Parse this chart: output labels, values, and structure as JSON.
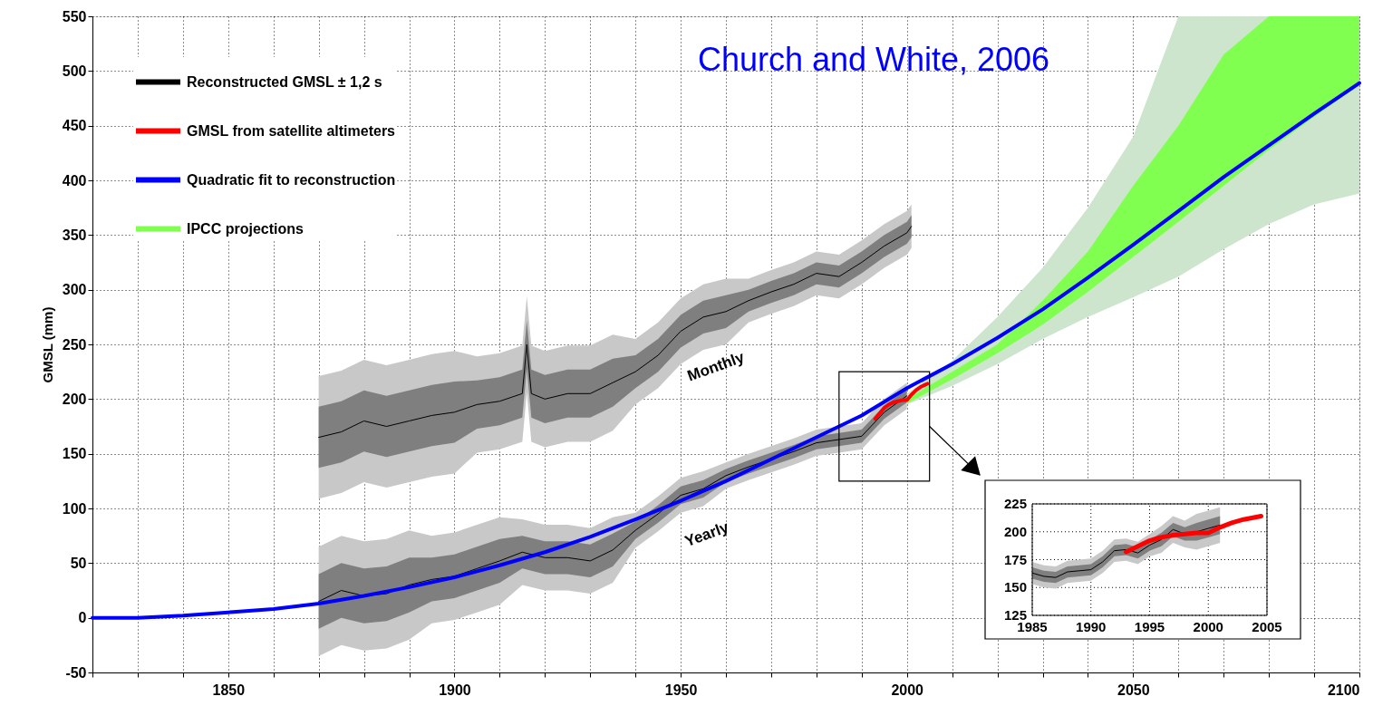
{
  "chart_data": [
    {
      "type": "line",
      "title": "Church and White, 2006",
      "ylabel": "GMSL (mm)",
      "xlim": [
        1820,
        2100
      ],
      "ylim": [
        -50,
        550
      ],
      "xticks": [
        {
          "value": 1820,
          "label": null
        },
        {
          "value": 1830,
          "label": null
        },
        {
          "value": 1840,
          "label": null
        },
        1850,
        {
          "value": 1860,
          "label": null
        },
        {
          "value": 1870,
          "label": null
        },
        {
          "value": 1880,
          "label": null
        },
        {
          "value": 1890,
          "label": null
        },
        1900,
        {
          "value": 1910,
          "label": null
        },
        {
          "value": 1920,
          "label": null
        },
        {
          "value": 1930,
          "label": null
        },
        {
          "value": 1940,
          "label": null
        },
        1950,
        {
          "value": 1960,
          "label": null
        },
        {
          "value": 1970,
          "label": null
        },
        {
          "value": 1980,
          "label": null
        },
        {
          "value": 1990,
          "label": null
        },
        2000,
        {
          "value": 2010,
          "label": null
        },
        {
          "value": 2020,
          "label": null
        },
        {
          "value": 2030,
          "label": null
        },
        {
          "value": 2040,
          "label": null
        },
        2050,
        {
          "value": 2060,
          "label": null
        },
        {
          "value": 2070,
          "label": null
        },
        {
          "value": 2080,
          "label": null
        },
        {
          "value": 2090,
          "label": null
        },
        2100
      ],
      "yticks": [
        -50,
        0,
        50,
        100,
        150,
        200,
        250,
        300,
        350,
        400,
        450,
        500,
        550
      ],
      "grid": true,
      "legend": "top left",
      "annotations": [
        "Monthly",
        "Yearly"
      ],
      "series": [
        {
          "type": "line",
          "color": "#c8c8c8",
          "x": [
            1870,
            1875,
            1880,
            1885,
            1890,
            1895,
            1900,
            1905,
            1910,
            1915,
            1920,
            1925,
            1930,
            1935,
            1940,
            1945,
            1950,
            1955,
            1960,
            1965,
            1970,
            1975,
            1980,
            1985,
            1990,
            1995,
            2000
          ],
          "values": [
            null,
            null,
            null,
            null,
            null,
            null,
            null,
            null,
            null,
            null,
            null,
            null,
            null,
            null,
            null,
            null,
            null,
            null,
            null,
            null,
            null,
            null,
            null,
            null,
            null,
            null,
            null
          ],
          "lower": [
            -35,
            -25,
            -30,
            -28,
            -20,
            -5,
            -2,
            5,
            12,
            30,
            25,
            25,
            22,
            32,
            64,
            79,
            96,
            102,
            118,
            126,
            133,
            140,
            148,
            151,
            154,
            176,
            191
          ],
          "upper": [
            65,
            75,
            70,
            72,
            80,
            75,
            78,
            85,
            92,
            90,
            85,
            85,
            82,
            92,
            96,
            111,
            128,
            134,
            142,
            150,
            157,
            164,
            172,
            175,
            178,
            200,
            215
          ]
        },
        {
          "type": "line",
          "color": "#7f7f7f",
          "x": [
            1870,
            1875,
            1880,
            1885,
            1890,
            1895,
            1900,
            1905,
            1910,
            1915,
            1920,
            1925,
            1930,
            1935,
            1940,
            1945,
            1950,
            1955,
            1960,
            1965,
            1970,
            1975,
            1980,
            1985,
            1990,
            1995,
            2000
          ],
          "values": [
            null,
            null,
            null,
            null,
            null,
            null,
            null,
            null,
            null,
            null,
            null,
            null,
            null,
            null,
            null,
            null,
            null,
            null,
            null,
            null,
            null,
            null,
            null,
            null,
            null,
            null,
            null
          ],
          "lower": [
            -10,
            0,
            -5,
            -3,
            5,
            15,
            18,
            25,
            32,
            45,
            40,
            40,
            37,
            47,
            72,
            87,
            104,
            110,
            124,
            132,
            139,
            146,
            154,
            157,
            160,
            182,
            197
          ],
          "upper": [
            40,
            50,
            45,
            47,
            55,
            55,
            58,
            65,
            72,
            75,
            70,
            70,
            67,
            77,
            88,
            103,
            120,
            126,
            136,
            144,
            151,
            158,
            166,
            169,
            172,
            194,
            209
          ]
        },
        {
          "type": "line",
          "name": "Reconstructed GMSL ± 1,2 s",
          "color": "#000000",
          "x": [
            1870,
            1875,
            1880,
            1885,
            1890,
            1895,
            1900,
            1905,
            1910,
            1915,
            1920,
            1925,
            1930,
            1935,
            1940,
            1945,
            1950,
            1955,
            1960,
            1965,
            1970,
            1975,
            1980,
            1985,
            1990,
            1995,
            2000
          ],
          "values": [
            15,
            25,
            20,
            22,
            30,
            35,
            38,
            45,
            52,
            60,
            55,
            55,
            52,
            62,
            80,
            95,
            112,
            118,
            130,
            138,
            145,
            152,
            160,
            163,
            166,
            188,
            203
          ]
        },
        {
          "type": "line",
          "color": "#c8c8c8",
          "x": [
            1870,
            1875,
            1880,
            1885,
            1890,
            1895,
            1900,
            1905,
            1910,
            1915,
            1916,
            1917,
            1920,
            1925,
            1930,
            1935,
            1940,
            1945,
            1950,
            1955,
            1960,
            1965,
            1970,
            1975,
            1980,
            1985,
            1990,
            1995,
            2000,
            2001
          ],
          "values": [
            null,
            null,
            null,
            null,
            null,
            null,
            null,
            null,
            null,
            null,
            null,
            null,
            null,
            null,
            null,
            null,
            null,
            null,
            null,
            null,
            null,
            null,
            null,
            null,
            null,
            null,
            null,
            null,
            null,
            null
          ],
          "lower": [
            109,
            114,
            124,
            119,
            124,
            129,
            132,
            151,
            154,
            161,
            206,
            161,
            156,
            161,
            161,
            171,
            195,
            210,
            232,
            245,
            250,
            270,
            278,
            285,
            295,
            292,
            305,
            320,
            332,
            338
          ],
          "upper": [
            221,
            226,
            236,
            231,
            236,
            241,
            244,
            239,
            242,
            249,
            294,
            249,
            244,
            249,
            249,
            259,
            255,
            270,
            292,
            305,
            310,
            310,
            318,
            325,
            335,
            332,
            345,
            360,
            372,
            378
          ]
        },
        {
          "type": "line",
          "color": "#7f7f7f",
          "x": [
            1870,
            1875,
            1880,
            1885,
            1890,
            1895,
            1900,
            1905,
            1910,
            1915,
            1916,
            1917,
            1920,
            1925,
            1930,
            1935,
            1940,
            1945,
            1950,
            1955,
            1960,
            1965,
            1970,
            1975,
            1980,
            1985,
            1990,
            1995,
            2000,
            2001
          ],
          "values": [
            null,
            null,
            null,
            null,
            null,
            null,
            null,
            null,
            null,
            null,
            null,
            null,
            null,
            null,
            null,
            null,
            null,
            null,
            null,
            null,
            null,
            null,
            null,
            null,
            null,
            null,
            null,
            null,
            null,
            null
          ],
          "lower": [
            137,
            142,
            152,
            147,
            152,
            157,
            160,
            173,
            176,
            183,
            228,
            183,
            178,
            183,
            183,
            193,
            210,
            225,
            247,
            260,
            265,
            280,
            288,
            295,
            305,
            302,
            315,
            330,
            342,
            348
          ],
          "upper": [
            193,
            198,
            208,
            203,
            208,
            213,
            216,
            217,
            220,
            227,
            272,
            227,
            222,
            227,
            227,
            237,
            240,
            255,
            277,
            290,
            295,
            300,
            308,
            315,
            325,
            322,
            335,
            350,
            362,
            368
          ]
        },
        {
          "type": "line",
          "color": "#000000",
          "x": [
            1870,
            1875,
            1880,
            1885,
            1890,
            1895,
            1900,
            1905,
            1910,
            1915,
            1916,
            1917,
            1920,
            1925,
            1930,
            1935,
            1940,
            1945,
            1950,
            1955,
            1960,
            1965,
            1970,
            1975,
            1980,
            1985,
            1990,
            1995,
            2000,
            2001
          ],
          "values": [
            165,
            170,
            180,
            175,
            180,
            185,
            188,
            195,
            198,
            205,
            250,
            205,
            200,
            205,
            205,
            215,
            225,
            240,
            262,
            275,
            280,
            290,
            298,
            305,
            315,
            312,
            325,
            340,
            352,
            358
          ]
        },
        {
          "type": "line",
          "name": "GMSL from satellite altimeters",
          "color": "#ff0000",
          "x": [
            1993,
            1994,
            1995,
            1996,
            1997,
            1998,
            1999,
            2000,
            2001,
            2002,
            2003,
            2004,
            2004.5
          ],
          "values": [
            182,
            187,
            192,
            195,
            197,
            198,
            199,
            199,
            204,
            208,
            211,
            213,
            214
          ]
        },
        {
          "type": "line",
          "name": "Quadratic fit to reconstruction",
          "color": "#0000ff",
          "x": [
            1820,
            1830,
            1840,
            1850,
            1860,
            1870,
            1880,
            1890,
            1900,
            1910,
            1920,
            1930,
            1940,
            1950,
            1960,
            1970,
            1980,
            1990,
            2000,
            2010,
            2020,
            2030,
            2040,
            2050,
            2060,
            2070,
            2080,
            2090,
            2100
          ],
          "values": [
            0,
            0,
            2,
            5,
            8,
            13,
            20,
            28,
            37,
            48,
            60,
            74,
            90,
            107,
            125,
            145,
            165,
            185,
            210,
            232,
            256,
            282,
            311,
            341,
            372,
            403,
            432,
            461,
            489
          ]
        },
        {
          "type": "line",
          "color": "#cde5cd",
          "x": [
            2000,
            2010,
            2020,
            2030,
            2040,
            2050,
            2060,
            2070,
            2080,
            2090,
            2100
          ],
          "values": [
            null,
            null,
            null,
            null,
            null,
            null,
            null,
            null,
            null,
            null,
            null
          ],
          "lower": [
            195,
            212,
            232,
            255,
            275,
            293,
            312,
            337,
            360,
            378,
            388
          ],
          "upper": [
            205,
            235,
            275,
            320,
            375,
            440,
            550,
            550,
            550,
            550,
            550
          ]
        },
        {
          "type": "line",
          "name": "IPCC projections",
          "color": "#80ff50",
          "x": [
            2000,
            2010,
            2020,
            2030,
            2040,
            2050,
            2060,
            2070,
            2080,
            2090,
            2100
          ],
          "values": [
            null,
            null,
            null,
            null,
            null,
            null,
            null,
            null,
            null,
            null,
            null
          ],
          "lower": [
            196,
            218,
            242,
            268,
            298,
            330,
            362,
            395,
            428,
            458,
            487
          ],
          "upper": [
            200,
            225,
            250,
            290,
            335,
            395,
            450,
            515,
            550,
            550,
            550
          ]
        }
      ]
    },
    {
      "type": "line",
      "xlim": [
        1985,
        2005
      ],
      "ylim": [
        125,
        225
      ],
      "xticks": [
        1985,
        1990,
        1995,
        2000,
        2005
      ],
      "yticks": [
        125,
        150,
        175,
        200,
        225
      ],
      "grid": true,
      "series": [
        {
          "type": "line",
          "color": "#c8c8c8",
          "x": [
            1985,
            1986,
            1987,
            1988,
            1989,
            1990,
            1991,
            1992,
            1993,
            1994,
            1995,
            1996,
            1997,
            1998,
            1999,
            2000,
            2001
          ],
          "values": [
            null,
            null,
            null,
            null,
            null,
            null,
            null,
            null,
            null,
            null,
            null,
            null,
            null,
            null,
            null,
            null,
            null
          ],
          "lower": [
            153,
            150,
            149,
            154,
            155,
            156,
            163,
            173,
            174,
            171,
            178,
            181,
            190,
            186,
            184,
            187,
            190
          ],
          "upper": [
            173,
            170,
            169,
            174,
            175,
            176,
            183,
            193,
            194,
            191,
            198,
            205,
            214,
            210,
            216,
            219,
            222
          ]
        },
        {
          "type": "line",
          "color": "#7f7f7f",
          "x": [
            1985,
            1986,
            1987,
            1988,
            1989,
            1990,
            1991,
            1992,
            1993,
            1994,
            1995,
            1996,
            1997,
            1998,
            1999,
            2000,
            2001
          ],
          "values": [
            null,
            null,
            null,
            null,
            null,
            null,
            null,
            null,
            null,
            null,
            null,
            null,
            null,
            null,
            null,
            null,
            null
          ],
          "lower": [
            158,
            155,
            154,
            159,
            160,
            161,
            168,
            178,
            179,
            176,
            183,
            187,
            196,
            192,
            192,
            195,
            198
          ],
          "upper": [
            168,
            165,
            164,
            169,
            170,
            171,
            178,
            188,
            189,
            186,
            193,
            199,
            208,
            204,
            208,
            211,
            214
          ]
        },
        {
          "type": "line",
          "color": "#000000",
          "x": [
            1985,
            1986,
            1987,
            1988,
            1989,
            1990,
            1991,
            1992,
            1993,
            1994,
            1995,
            1996,
            1997,
            1998,
            1999,
            2000,
            2001
          ],
          "values": [
            163,
            160,
            159,
            164,
            165,
            166,
            173,
            183,
            184,
            181,
            188,
            193,
            202,
            198,
            200,
            203,
            206
          ]
        },
        {
          "type": "line",
          "color": "#ff0000",
          "x": [
            1993,
            1994,
            1995,
            1996,
            1997,
            1998,
            1999,
            2000,
            2001,
            2002,
            2003,
            2004,
            2004.5
          ],
          "values": [
            182,
            187,
            192,
            195,
            197,
            198,
            199,
            199,
            204,
            208,
            211,
            213,
            214
          ]
        }
      ]
    }
  ]
}
